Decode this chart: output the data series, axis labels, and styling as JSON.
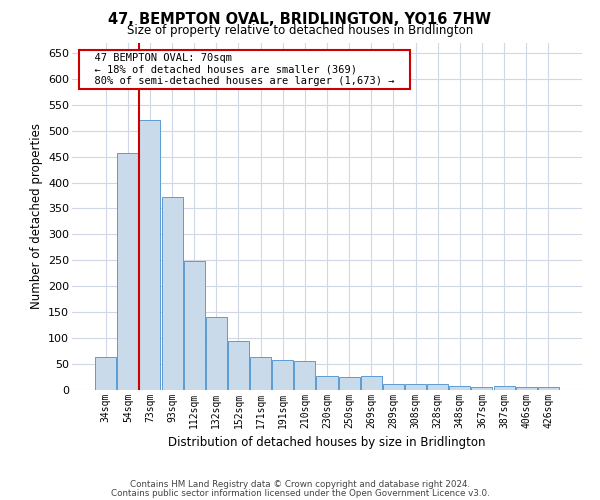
{
  "title": "47, BEMPTON OVAL, BRIDLINGTON, YO16 7HW",
  "subtitle": "Size of property relative to detached houses in Bridlington",
  "xlabel": "Distribution of detached houses by size in Bridlington",
  "ylabel": "Number of detached properties",
  "footnote1": "Contains HM Land Registry data © Crown copyright and database right 2024.",
  "footnote2": "Contains public sector information licensed under the Open Government Licence v3.0.",
  "annotation_title": "47 BEMPTON OVAL: 70sqm",
  "annotation_line1": "← 18% of detached houses are smaller (369)",
  "annotation_line2": "80% of semi-detached houses are larger (1,673) →",
  "bar_color": "#c9daea",
  "bar_edge_color": "#5b9bd5",
  "grid_color": "#d0d8e8",
  "vline_color": "#cc0000",
  "annotation_box_color": "#cc0000",
  "background_color": "#ffffff",
  "categories": [
    "34sqm",
    "54sqm",
    "73sqm",
    "93sqm",
    "112sqm",
    "132sqm",
    "152sqm",
    "171sqm",
    "191sqm",
    "210sqm",
    "230sqm",
    "250sqm",
    "269sqm",
    "289sqm",
    "308sqm",
    "328sqm",
    "348sqm",
    "367sqm",
    "387sqm",
    "406sqm",
    "426sqm"
  ],
  "values": [
    63,
    457,
    520,
    372,
    249,
    140,
    95,
    63,
    58,
    56,
    27,
    26,
    27,
    11,
    12,
    11,
    8,
    5,
    7,
    5,
    5
  ],
  "ylim": [
    0,
    670
  ],
  "yticks": [
    0,
    50,
    100,
    150,
    200,
    250,
    300,
    350,
    400,
    450,
    500,
    550,
    600,
    650
  ]
}
